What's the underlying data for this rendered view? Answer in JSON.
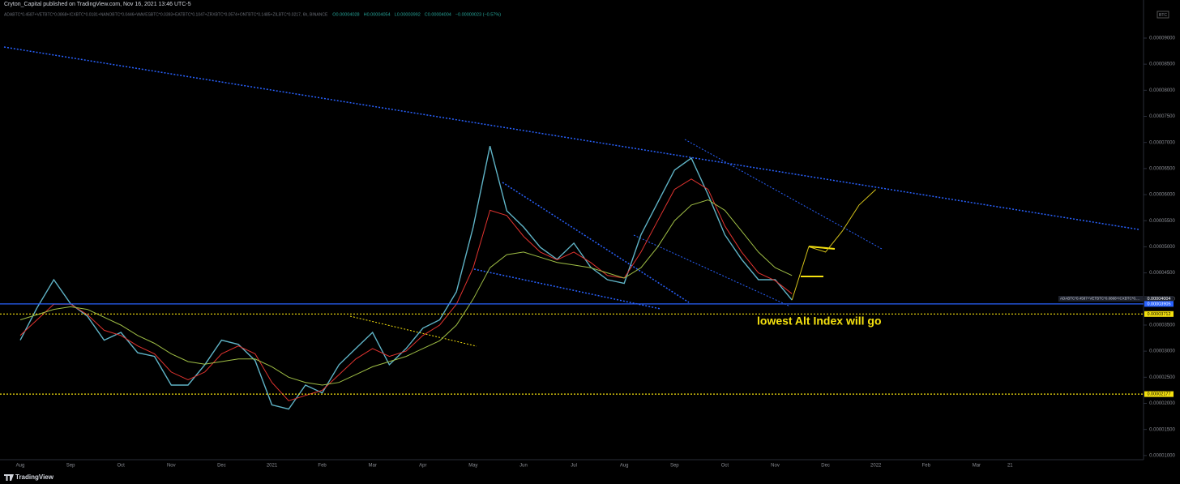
{
  "header": {
    "publisher": "Cryton_Capital published on TradingView.com, Nov 16, 2021 13:46 UTC-5",
    "symbol": "ADABTC*0.4587+VETBTC*0.0868+ICXBTC*0.0181+NANOBTC*0.0446+WAVESBTC*0.0393+EATBTC*0.1047+ZRXBTC*0.0574+ONTBTC*0.1485+ZILBTC*0.0217, 6h, BINANCE",
    "ohlc": [
      "O0.00004028",
      "H0.00004054",
      "L0.00003992",
      "C0.00004004",
      "−0.00000023 (−0.57%)"
    ],
    "currency": "BTC"
  },
  "footer": {
    "brand": "TradingView"
  },
  "chart_data": {
    "type": "line",
    "annotation": "lowest Alt Index will go",
    "price_tag_symbol": "ADABTC*0.4587+VETBTC*0.0868+ICXBTC*0....",
    "categories": [
      "Aug",
      null,
      null,
      "Sep",
      null,
      null,
      "Oct",
      null,
      null,
      "Nov",
      null,
      null,
      "Dec",
      null,
      null,
      "2021",
      null,
      null,
      "Feb",
      null,
      null,
      "Mar",
      null,
      null,
      "Apr",
      null,
      null,
      "May",
      null,
      null,
      "Jun",
      null,
      null,
      "Jul",
      null,
      null,
      "Aug",
      null,
      null,
      "Sep",
      null,
      null,
      "Oct",
      null,
      null,
      "Nov",
      null,
      null,
      "Dec",
      null,
      null,
      "2022",
      null,
      null,
      "Feb",
      null,
      null,
      "Mar",
      null,
      "21"
    ],
    "series": [
      {
        "color": "#5fb3c6",
        "values": [
          3.21e-05,
          3.83e-05,
          4.37e-05,
          3.91e-05,
          3.67e-05,
          3.21e-05,
          3.36e-05,
          2.97e-05,
          2.9e-05,
          2.35e-05,
          2.35e-05,
          2.74e-05,
          3.21e-05,
          3.13e-05,
          2.82e-05,
          1.97e-05,
          1.89e-05,
          2.35e-05,
          2.2e-05,
          2.74e-05,
          3.05e-05,
          3.36e-05,
          2.74e-05,
          3.05e-05,
          3.44e-05,
          3.6e-05,
          4.14e-05,
          5.38e-05,
          6.93e-05,
          5.69e-05,
          5.38e-05,
          4.99e-05,
          4.76e-05,
          5.07e-05,
          4.61e-05,
          4.37e-05,
          4.3e-05,
          5.23e-05,
          5.85e-05,
          6.47e-05,
          6.7e-05,
          6e-05,
          5.23e-05,
          4.76e-05,
          4.37e-05,
          4.37e-05,
          3.98e-05,
          null,
          null,
          null,
          null,
          null,
          null,
          null,
          null,
          null,
          null,
          null,
          null,
          null
        ]
      },
      {
        "color": "#e0332f",
        "values": [
          3.3e-05,
          3.6e-05,
          3.9e-05,
          3.9e-05,
          3.7e-05,
          3.4e-05,
          3.3e-05,
          3.1e-05,
          2.95e-05,
          2.6e-05,
          2.45e-05,
          2.6e-05,
          2.95e-05,
          3.1e-05,
          2.95e-05,
          2.4e-05,
          2.05e-05,
          2.15e-05,
          2.25e-05,
          2.55e-05,
          2.85e-05,
          3.05e-05,
          2.9e-05,
          3e-05,
          3.3e-05,
          3.5e-05,
          3.9e-05,
          4.6e-05,
          5.7e-05,
          5.6e-05,
          5.2e-05,
          4.9e-05,
          4.75e-05,
          4.9e-05,
          4.7e-05,
          4.45e-05,
          4.4e-05,
          4.9e-05,
          5.5e-05,
          6.1e-05,
          6.3e-05,
          6.1e-05,
          5.4e-05,
          4.9e-05,
          4.5e-05,
          4.35e-05,
          4.1e-05,
          null,
          null,
          null,
          null,
          null,
          null,
          null,
          null,
          null,
          null,
          null,
          null,
          null
        ]
      },
      {
        "color": "#9fbe45",
        "values": [
          3.6e-05,
          3.7e-05,
          3.8e-05,
          3.85e-05,
          3.8e-05,
          3.65e-05,
          3.5e-05,
          3.3e-05,
          3.15e-05,
          2.95e-05,
          2.8e-05,
          2.75e-05,
          2.8e-05,
          2.85e-05,
          2.85e-05,
          2.7e-05,
          2.5e-05,
          2.4e-05,
          2.35e-05,
          2.4e-05,
          2.55e-05,
          2.7e-05,
          2.8e-05,
          2.9e-05,
          3.05e-05,
          3.2e-05,
          3.5e-05,
          4e-05,
          4.6e-05,
          4.85e-05,
          4.9e-05,
          4.8e-05,
          4.7e-05,
          4.65e-05,
          4.6e-05,
          4.5e-05,
          4.4e-05,
          4.6e-05,
          5e-05,
          5.5e-05,
          5.8e-05,
          5.9e-05,
          5.7e-05,
          5.3e-05,
          4.9e-05,
          4.6e-05,
          4.45e-05,
          null,
          null,
          null,
          null,
          null,
          null,
          null,
          null,
          null,
          null,
          null,
          null,
          null
        ]
      },
      {
        "color": "#d4c21a",
        "values": [
          null,
          null,
          null,
          null,
          null,
          null,
          null,
          null,
          null,
          null,
          null,
          null,
          null,
          null,
          null,
          null,
          null,
          null,
          null,
          null,
          null,
          null,
          null,
          null,
          null,
          null,
          null,
          null,
          null,
          null,
          null,
          null,
          null,
          null,
          null,
          null,
          null,
          null,
          null,
          null,
          null,
          null,
          null,
          null,
          null,
          null,
          3.98e-05,
          5e-05,
          4.9e-05,
          5.3e-05,
          5.8e-05,
          6.1e-05,
          null,
          null,
          null,
          null,
          null,
          null,
          null,
          null
        ]
      }
    ],
    "levels": [
      {
        "value": 4.004e-05,
        "label": "0.00004004",
        "color": "#2c2f36",
        "style": "tag"
      },
      {
        "value": 3.905e-05,
        "label": "0.00003905",
        "color": "#2962ff",
        "style": "solid"
      },
      {
        "value": 3.712e-05,
        "label": "0.00003712",
        "color": "#f5e10f",
        "style": "dotted"
      },
      {
        "value": 2.177e-05,
        "label": "0.00002177",
        "color": "#f5e10f",
        "style": "dotted"
      }
    ],
    "ylim": [
      9.2e-06,
      9.73e-05
    ],
    "yticks": [
      {
        "value": 9e-05,
        "label": "0.00009000"
      },
      {
        "value": 8.5e-05,
        "label": "0.00008500"
      },
      {
        "value": 8e-05,
        "label": "0.00008000"
      },
      {
        "value": 7.5e-05,
        "label": "0.00007500"
      },
      {
        "value": 7e-05,
        "label": "0.00007000"
      },
      {
        "value": 6.5e-05,
        "label": "0.00006500"
      },
      {
        "value": 6e-05,
        "label": "0.00006000"
      },
      {
        "value": 5.5e-05,
        "label": "0.00005500"
      },
      {
        "value": 5e-05,
        "label": "0.00005000"
      },
      {
        "value": 4.5e-05,
        "label": "0.00004500"
      },
      {
        "value": 4e-05,
        "label": "0.00004000"
      },
      {
        "value": 3.5e-05,
        "label": "0.00003500"
      },
      {
        "value": 3e-05,
        "label": "0.00003000"
      },
      {
        "value": 2.5e-05,
        "label": "0.00002500"
      },
      {
        "value": 2e-05,
        "label": "0.00002000"
      },
      {
        "value": 1.5e-05,
        "label": "0.00001500"
      },
      {
        "value": 1e-05,
        "label": "0.00001000"
      }
    ]
  }
}
